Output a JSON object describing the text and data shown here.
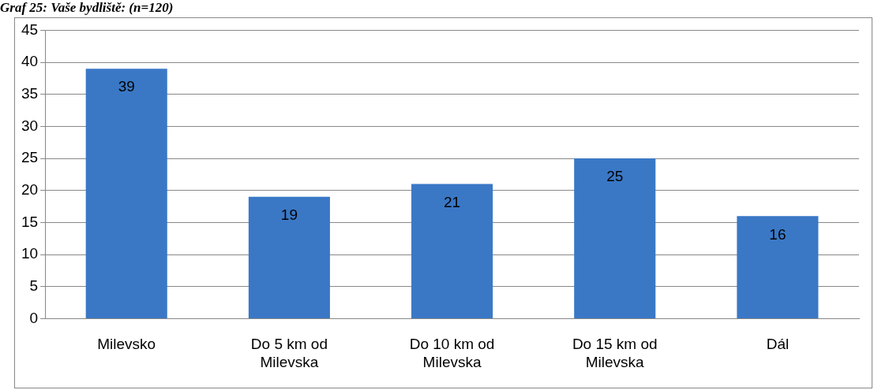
{
  "chart_data": {
    "type": "bar",
    "title": "Graf 25: Vaše bydliště: (n=120)",
    "categories": [
      "Milevsko",
      "Do 5 km od Milevska",
      "Do 10 km od Milevska",
      "Do 15 km od Milevska",
      "Dál"
    ],
    "values": [
      39,
      19,
      21,
      25,
      16
    ],
    "color": "#3a78c6",
    "ylim": [
      0,
      45
    ],
    "yticks": [
      0,
      5,
      10,
      15,
      20,
      25,
      30,
      35,
      40,
      45
    ],
    "grid": "y",
    "data_labels": true
  }
}
